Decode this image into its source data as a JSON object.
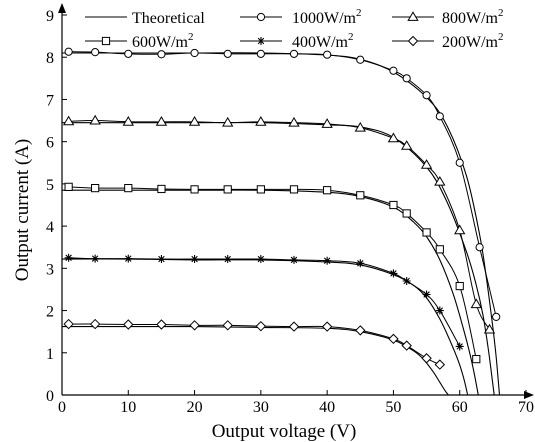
{
  "chart_data": {
    "type": "line",
    "xlabel": "Output voltage (V)",
    "ylabel": "Output current (A)",
    "xlim": [
      0,
      70
    ],
    "ylim": [
      0,
      9
    ],
    "xticks": [
      "0",
      "10",
      "20",
      "30",
      "40",
      "50",
      "60",
      "70"
    ],
    "yticks": [
      "0",
      "1",
      "2",
      "3",
      "4",
      "5",
      "6",
      "7",
      "8",
      "9"
    ],
    "grid": false,
    "legend_position": "top",
    "legend": [
      {
        "label": "Theoretical",
        "unit": "",
        "marker": "none"
      },
      {
        "label": "1000W/m",
        "unit": "2",
        "marker": "circle"
      },
      {
        "label": "800W/m",
        "unit": "2",
        "marker": "triangle"
      },
      {
        "label": "600W/m",
        "unit": "2",
        "marker": "square"
      },
      {
        "label": "400W/m",
        "unit": "2",
        "marker": "star"
      },
      {
        "label": "200W/m",
        "unit": "2",
        "marker": "diamond"
      }
    ],
    "theoretical": [
      {
        "name": "Theoretical",
        "x": [
          0,
          10,
          20,
          30,
          40,
          45,
          50,
          55,
          58,
          61,
          63,
          64,
          65,
          65.5,
          66
        ],
        "y": [
          8.1,
          8.1,
          8.1,
          8.1,
          8.05,
          7.95,
          7.65,
          7.05,
          6.4,
          5.2,
          3.8,
          2.8,
          1.6,
          0.9,
          0
        ]
      },
      {
        "name": "Theoretical",
        "x": [
          0,
          10,
          20,
          30,
          40,
          45,
          50,
          55,
          58,
          61,
          62.5,
          63.5,
          64.3,
          64.8,
          65.2
        ],
        "y": [
          6.45,
          6.45,
          6.45,
          6.45,
          6.4,
          6.35,
          6.1,
          5.4,
          4.6,
          3.4,
          2.6,
          1.9,
          1.1,
          0.5,
          0
        ]
      },
      {
        "name": "Theoretical",
        "x": [
          0,
          10,
          20,
          30,
          40,
          45,
          50,
          53,
          55,
          57,
          59,
          60.5,
          61.5,
          62.2,
          62.8
        ],
        "y": [
          4.85,
          4.85,
          4.85,
          4.85,
          4.8,
          4.7,
          4.45,
          4.1,
          3.75,
          3.2,
          2.4,
          1.6,
          1.0,
          0.5,
          0
        ]
      },
      {
        "name": "Theoretical",
        "x": [
          0,
          10,
          20,
          30,
          40,
          45,
          50,
          53,
          55,
          57,
          58.5,
          59.8,
          60.6,
          61.2
        ],
        "y": [
          3.22,
          3.22,
          3.2,
          3.2,
          3.15,
          3.08,
          2.85,
          2.6,
          2.3,
          1.8,
          1.3,
          0.8,
          0.4,
          0
        ]
      },
      {
        "name": "Theoretical",
        "x": [
          0,
          10,
          20,
          30,
          40,
          45,
          50,
          53,
          54.5,
          56,
          57,
          57.8,
          58.3
        ],
        "y": [
          1.62,
          1.62,
          1.62,
          1.6,
          1.58,
          1.5,
          1.3,
          1.05,
          0.85,
          0.55,
          0.3,
          0.1,
          0
        ]
      }
    ],
    "series": [
      {
        "name": "1000W/m2",
        "marker": "circle",
        "x": [
          1,
          5,
          10,
          15,
          20,
          25,
          30,
          35,
          40,
          45,
          50,
          52,
          55,
          57,
          60,
          63,
          65.5
        ],
        "y": [
          8.13,
          8.12,
          8.08,
          8.07,
          8.1,
          8.08,
          8.08,
          8.08,
          8.06,
          7.94,
          7.68,
          7.5,
          7.1,
          6.6,
          5.5,
          3.5,
          1.85
        ]
      },
      {
        "name": "800W/m2",
        "marker": "triangle",
        "x": [
          1,
          5,
          10,
          15,
          20,
          25,
          30,
          35,
          40,
          45,
          50,
          52,
          55,
          57,
          60,
          62.5,
          64.5
        ],
        "y": [
          6.48,
          6.5,
          6.47,
          6.47,
          6.47,
          6.45,
          6.47,
          6.45,
          6.42,
          6.33,
          6.08,
          5.9,
          5.45,
          5.05,
          3.9,
          2.15,
          1.55
        ]
      },
      {
        "name": "600W/m2",
        "marker": "square",
        "x": [
          1,
          5,
          10,
          15,
          20,
          25,
          30,
          35,
          40,
          45,
          50,
          52,
          55,
          57,
          60,
          62.5
        ],
        "y": [
          4.93,
          4.9,
          4.9,
          4.88,
          4.87,
          4.87,
          4.87,
          4.87,
          4.85,
          4.73,
          4.5,
          4.3,
          3.85,
          3.45,
          2.58,
          0.85
        ]
      },
      {
        "name": "400W/m2",
        "marker": "star",
        "x": [
          1,
          5,
          10,
          15,
          20,
          25,
          30,
          35,
          40,
          45,
          50,
          52,
          55,
          57,
          60
        ],
        "y": [
          3.25,
          3.23,
          3.23,
          3.22,
          3.22,
          3.22,
          3.22,
          3.2,
          3.18,
          3.12,
          2.88,
          2.7,
          2.38,
          2.0,
          1.15
        ]
      },
      {
        "name": "200W/m2",
        "marker": "diamond",
        "x": [
          1,
          5,
          10,
          15,
          20,
          25,
          30,
          35,
          40,
          45,
          50,
          52,
          55,
          57
        ],
        "y": [
          1.68,
          1.68,
          1.67,
          1.67,
          1.65,
          1.65,
          1.63,
          1.62,
          1.62,
          1.53,
          1.33,
          1.17,
          0.87,
          0.72
        ]
      }
    ]
  }
}
